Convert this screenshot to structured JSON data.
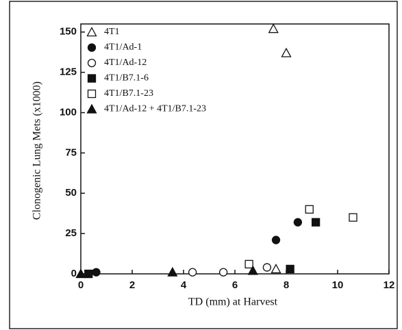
{
  "chart_data": {
    "type": "scatter",
    "xlabel": "TD (mm) at Harvest",
    "ylabel": "Clonogenic Lung Mets (x1000)",
    "xlim": [
      0,
      12
    ],
    "ylim": [
      0,
      155
    ],
    "xticks": [
      0,
      2,
      4,
      6,
      8,
      10,
      12
    ],
    "yticks": [
      0,
      25,
      50,
      75,
      100,
      125,
      150
    ],
    "legend": "upper-left",
    "series": [
      {
        "name": "4T1",
        "color": "#111111",
        "marker": "triangle-open",
        "x": [
          7.5,
          8.0,
          7.6
        ],
        "values": [
          152,
          137,
          3
        ]
      },
      {
        "name": "4T1/Ad-1",
        "color": "#111111",
        "marker": "circle-filled",
        "x": [
          7.6,
          8.45,
          0.6
        ],
        "values": [
          21,
          32,
          1
        ]
      },
      {
        "name": "4T1/Ad-12",
        "color": "#111111",
        "marker": "circle-open",
        "x": [
          4.35,
          5.55,
          7.25
        ],
        "values": [
          1,
          1,
          4
        ]
      },
      {
        "name": "4T1/B7.1-6",
        "color": "#111111",
        "marker": "square-filled",
        "x": [
          0.3,
          8.15,
          9.15
        ],
        "values": [
          0,
          3,
          32
        ]
      },
      {
        "name": "4T1/B7.1-23",
        "color": "#111111",
        "marker": "square-open",
        "x": [
          6.55,
          8.9,
          10.6
        ],
        "values": [
          6,
          40,
          35
        ]
      },
      {
        "name": "4T1/Ad-12 + 4T1/B7.1-23",
        "color": "#111111",
        "marker": "triangle-filled",
        "x": [
          0.0,
          3.57,
          6.7
        ],
        "values": [
          0,
          1,
          2
        ]
      }
    ]
  }
}
